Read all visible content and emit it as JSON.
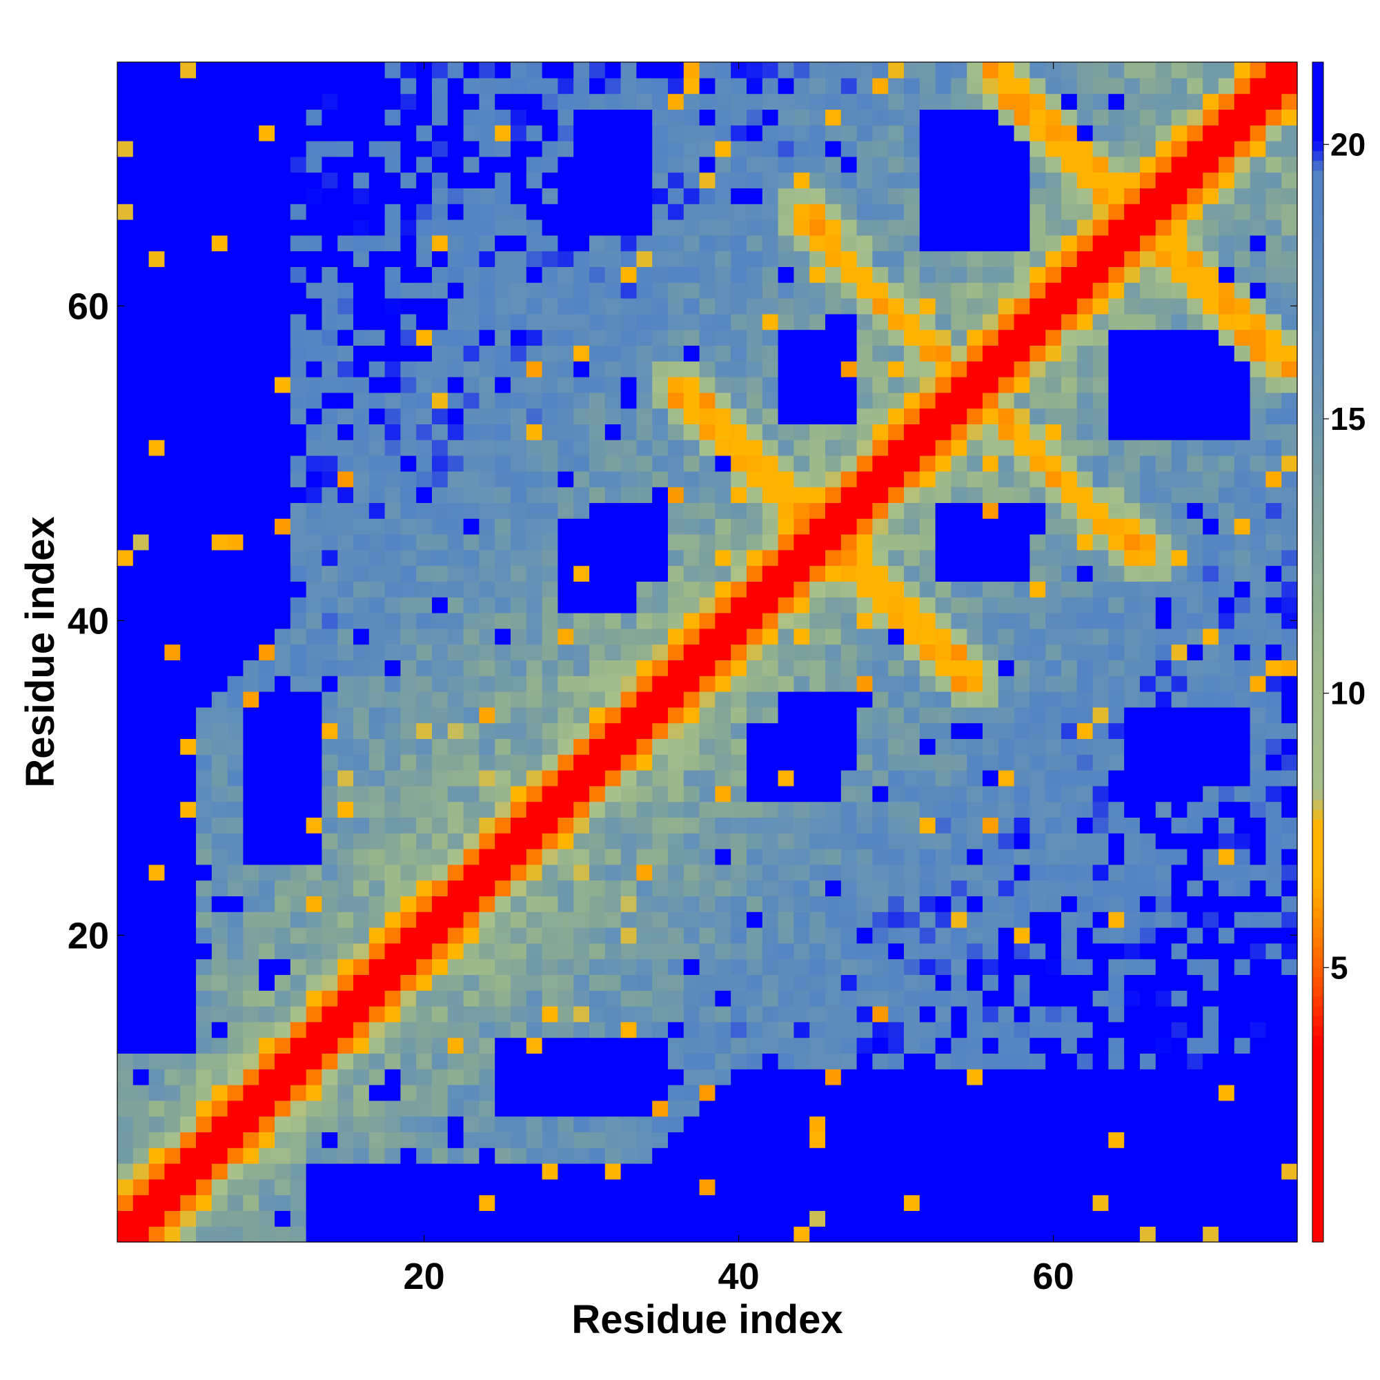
{
  "chart_data": {
    "type": "heatmap",
    "title": "",
    "xlabel": "Residue index",
    "ylabel": "Residue index",
    "n_residues": 75,
    "xlim": [
      1,
      75
    ],
    "ylim": [
      1,
      75
    ],
    "x_ticks": [
      20,
      40,
      60
    ],
    "y_ticks": [
      20,
      40,
      60
    ],
    "colorbar": {
      "ticks": [
        5,
        10,
        15,
        20
      ],
      "range": [
        0,
        21.5
      ],
      "colors": [
        {
          "value": 0,
          "color": "#ff0000"
        },
        {
          "value": 3.6,
          "color": "#ff0000"
        },
        {
          "value": 4.6,
          "color": "#ff4a00"
        },
        {
          "value": 5.6,
          "color": "#ff8000"
        },
        {
          "value": 6.6,
          "color": "#ffb000"
        },
        {
          "value": 7.6,
          "color": "#ffb600"
        },
        {
          "value": 8.2,
          "color": "#a9c08c"
        },
        {
          "value": 10.5,
          "color": "#9db88a"
        },
        {
          "value": 13.0,
          "color": "#7fa39b"
        },
        {
          "value": 16.0,
          "color": "#6390b8"
        },
        {
          "value": 19.5,
          "color": "#5283c4"
        },
        {
          "value": 20.1,
          "color": "#0000ff"
        },
        {
          "value": 21.5,
          "color": "#0000ff"
        }
      ],
      "saturation_color": "#0000ff"
    },
    "description_of_values": "Pairwise residue distance map; values are distances (capped at ~21).",
    "blue_patches": [
      {
        "x": [
          52,
          58
        ],
        "y": [
          67,
          72
        ]
      },
      {
        "x": [
          67,
          72
        ],
        "y": [
          52,
          58
        ]
      },
      {
        "x": [
          43,
          47
        ],
        "y": [
          53,
          58
        ]
      },
      {
        "x": [
          53,
          58
        ],
        "y": [
          43,
          47
        ]
      },
      {
        "x": [
          64,
          69
        ],
        "y": [
          52,
          58
        ]
      },
      {
        "x": [
          52,
          58
        ],
        "y": [
          64,
          69
        ]
      },
      {
        "x": [
          29,
          33
        ],
        "y": [
          41,
          46
        ]
      },
      {
        "x": [
          41,
          46
        ],
        "y": [
          29,
          33
        ]
      },
      {
        "x": [
          43,
          47
        ],
        "y": [
          31,
          35
        ]
      },
      {
        "x": [
          31,
          35
        ],
        "y": [
          43,
          47
        ]
      },
      {
        "x": [
          65,
          69
        ],
        "y": [
          29,
          34
        ]
      },
      {
        "x": [
          29,
          34
        ],
        "y": [
          65,
          69
        ]
      },
      {
        "x": [
          9,
          13
        ],
        "y": [
          25,
          35
        ]
      },
      {
        "x": [
          25,
          35
        ],
        "y": [
          9,
          13
        ]
      },
      {
        "x": [
          30,
          34
        ],
        "y": [
          67,
          72
        ]
      },
      {
        "x": [
          67,
          72
        ],
        "y": [
          30,
          34
        ]
      }
    ],
    "contact_lines": [
      {
        "from": [
          56,
          75
        ],
        "to": [
          75,
          56
        ]
      },
      {
        "from": [
          44,
          66
        ],
        "to": [
          55,
          54
        ]
      },
      {
        "from": [
          36,
          55
        ],
        "to": [
          45,
          46
        ]
      },
      {
        "from": [
          45,
          43
        ],
        "to": [
          55,
          34
        ]
      },
      {
        "from": [
          56,
          55
        ],
        "to": [
          65,
          45
        ]
      },
      {
        "from": [
          66,
          65
        ],
        "to": [
          75,
          57
        ]
      }
    ]
  }
}
